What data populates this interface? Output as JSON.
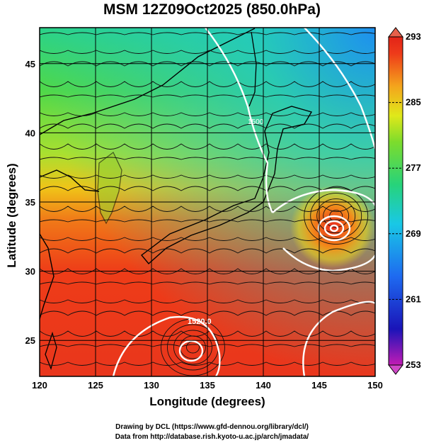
{
  "title": "MSM 12Z09Oct2025 (850.0hPa)",
  "xlabel": "Longitude (degrees)",
  "ylabel": "Latitude  (degrees)",
  "x_ticks": [
    "120",
    "125",
    "130",
    "135",
    "140",
    "145",
    "150"
  ],
  "y_ticks": [
    "25",
    "30",
    "35",
    "40",
    "45"
  ],
  "colorbar": {
    "ticks": [
      "293",
      "285",
      "277",
      "269",
      "261",
      "253"
    ],
    "min": 253,
    "max": 293,
    "colors_bottom_to_top": [
      "#c21bb5",
      "#1a14b8",
      "#1e6af0",
      "#19c8e6",
      "#27d37a",
      "#7ddc2c",
      "#e0e81a",
      "#f4a41c",
      "#ee3a1a",
      "#e22418"
    ]
  },
  "contour_labels": [
    "1520.0",
    "1500"
  ],
  "credits": [
    "Drawing by DCL (https://www.gfd-dennou.org/library/dcl/)",
    "Data from http://database.rish.kyoto-u.ac.jp/arch/jmadata/"
  ],
  "chart_data": {
    "type": "heatmap",
    "title": "MSM 12Z09Oct2025 (850.0hPa)",
    "xlabel": "Longitude (degrees)",
    "ylabel": "Latitude  (degrees)",
    "xlim": [
      120,
      150
    ],
    "ylim": [
      22.4,
      47.6
    ],
    "x_ticks": [
      120,
      125,
      130,
      135,
      140,
      145,
      150
    ],
    "y_ticks": [
      25,
      30,
      35,
      40,
      45
    ],
    "color_range": [
      253,
      293
    ],
    "colorbar_ticks": [
      253,
      261,
      269,
      277,
      285,
      293
    ],
    "grid": true,
    "overlays": [
      "streamlines",
      "geopotential height contours (white)",
      "coastlines"
    ],
    "features": [
      {
        "kind": "cyclone",
        "lon": 146.5,
        "lat": 34.0
      },
      {
        "kind": "low",
        "lon": 133.7,
        "lat": 24.5
      }
    ]
  }
}
